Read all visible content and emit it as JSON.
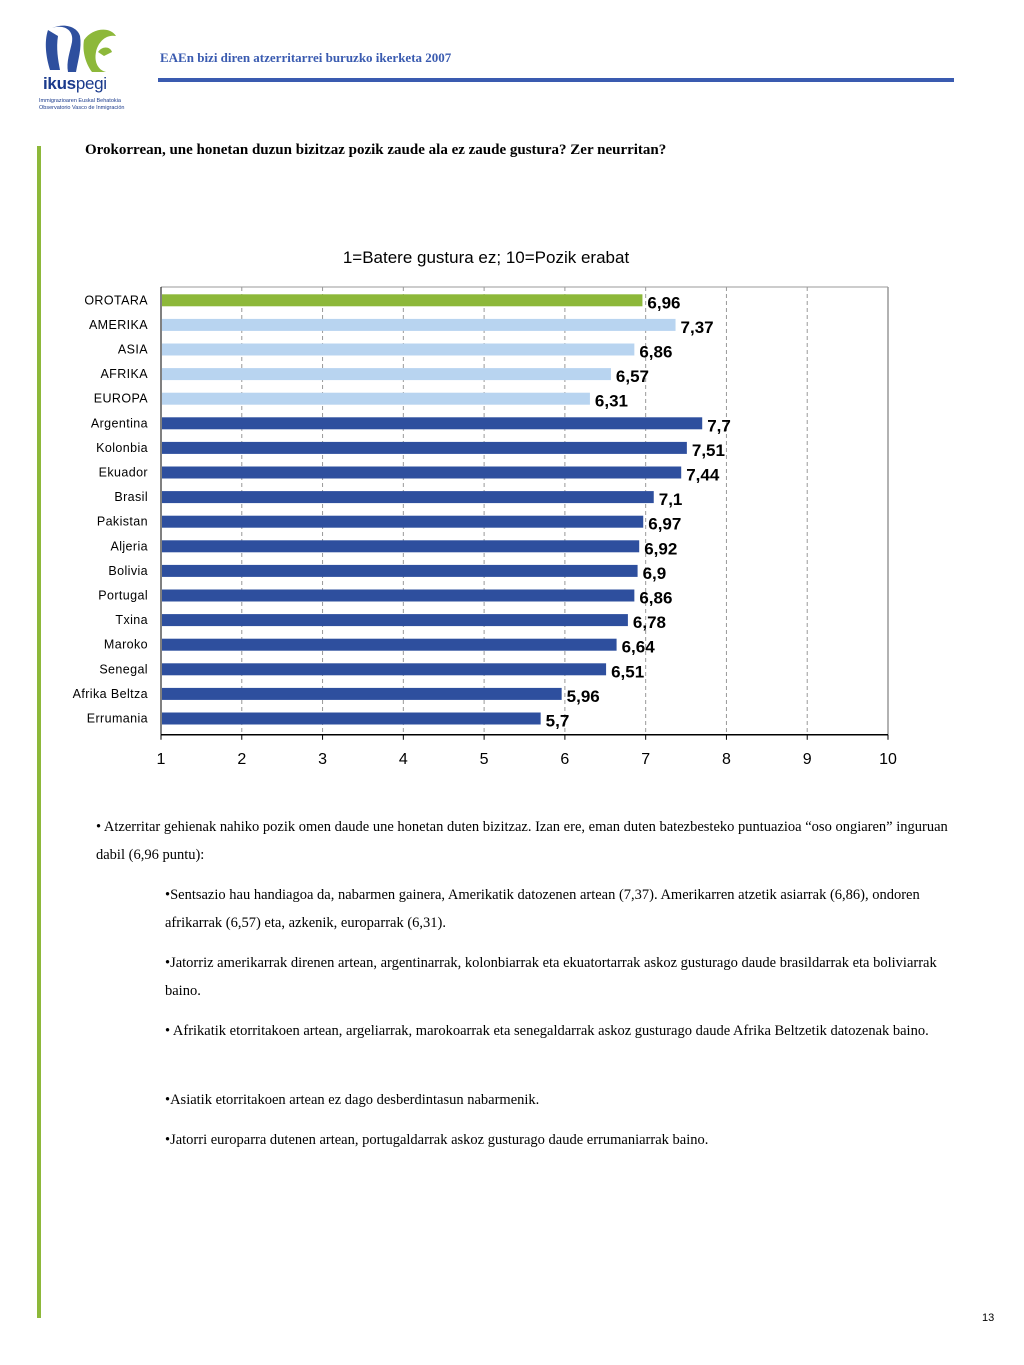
{
  "header": {
    "title": "EAEn bizi diren atzerritarrei buruzko ikerketa 2007",
    "logo": {
      "word_bold": "ikus",
      "word_light": "pegi",
      "subtitle_line1": "Immigrazioaren Euskal Behatokia",
      "subtitle_line2": "Observatorio Vasco de Inmigración"
    }
  },
  "question": "Orokorrean, une honetan duzun bizitzaz pozik zaude ala ez zaude gustura? Zer neurritan?",
  "chart_data": {
    "type": "bar",
    "orientation": "horizontal",
    "title": "1=Batere gustura ez; 10=Pozik erabat",
    "categories": [
      "OROTARA",
      "AMERIKA",
      "ASIA",
      "AFRIKA",
      "EUROPA",
      "Argentina",
      "Kolonbia",
      "Ekuador",
      "Brasil",
      "Pakistan",
      "Aljeria",
      "Bolivia",
      "Portugal",
      "Txina",
      "Maroko",
      "Senegal",
      "Afrika Beltza",
      "Errumania"
    ],
    "values": [
      6.96,
      7.37,
      6.86,
      6.57,
      6.31,
      7.7,
      7.51,
      7.44,
      7.1,
      6.97,
      6.92,
      6.9,
      6.86,
      6.78,
      6.64,
      6.51,
      5.96,
      5.7
    ],
    "value_labels": [
      "6,96",
      "7,37",
      "6,86",
      "6,57",
      "6,31",
      "7,7",
      "7,51",
      "7,44",
      "7,1",
      "6,97",
      "6,92",
      "6,9",
      "6,86",
      "6,78",
      "6,64",
      "6,51",
      "5,96",
      "5,7"
    ],
    "xlim": [
      1,
      10
    ],
    "xticks": [
      "1",
      "2",
      "3",
      "4",
      "5",
      "6",
      "7",
      "8",
      "9",
      "10"
    ],
    "grid": true,
    "colors": {
      "total": "#8db83a",
      "region": "#b8d4f0",
      "country": "#2e4f9e"
    },
    "bar_groups": [
      "total",
      "region",
      "region",
      "region",
      "region",
      "country",
      "country",
      "country",
      "country",
      "country",
      "country",
      "country",
      "country",
      "country",
      "country",
      "country",
      "country",
      "country"
    ]
  },
  "text": {
    "p1": "• Atzerritar gehienak nahiko pozik omen daude une honetan duten bizitzaz. Izan ere, eman duten batezbesteko puntuazioa “oso ongiaren” inguruan dabil (6,96 puntu):",
    "b1": "•Sentsazio hau handiagoa da, nabarmen gainera, Amerikatik datozenen artean (7,37). Amerikarren atzetik asiarrak (6,86), ondoren afrikarrak (6,57) eta, azkenik, europarrak (6,31).",
    "b2": "•Jatorriz amerikarrak direnen artean, argentinarrak, kolonbiarrak eta ekuatortarrak askoz gusturago daude brasildarrak eta boliviarrak baino.",
    "b3": "• Afrikatik etorritakoen artean, argeliarrak, marokoarrak eta senegaldarrak askoz gusturago daude Afrika Beltzetik datozenak baino.",
    "b4": "•Asiatik etorritakoen artean ez dago desberdintasun nabarmenik.",
    "b5": "•Jatorri europarra dutenen artean, portugaldarrak askoz gusturago daude errumaniarrak baino."
  },
  "page_number": "13"
}
